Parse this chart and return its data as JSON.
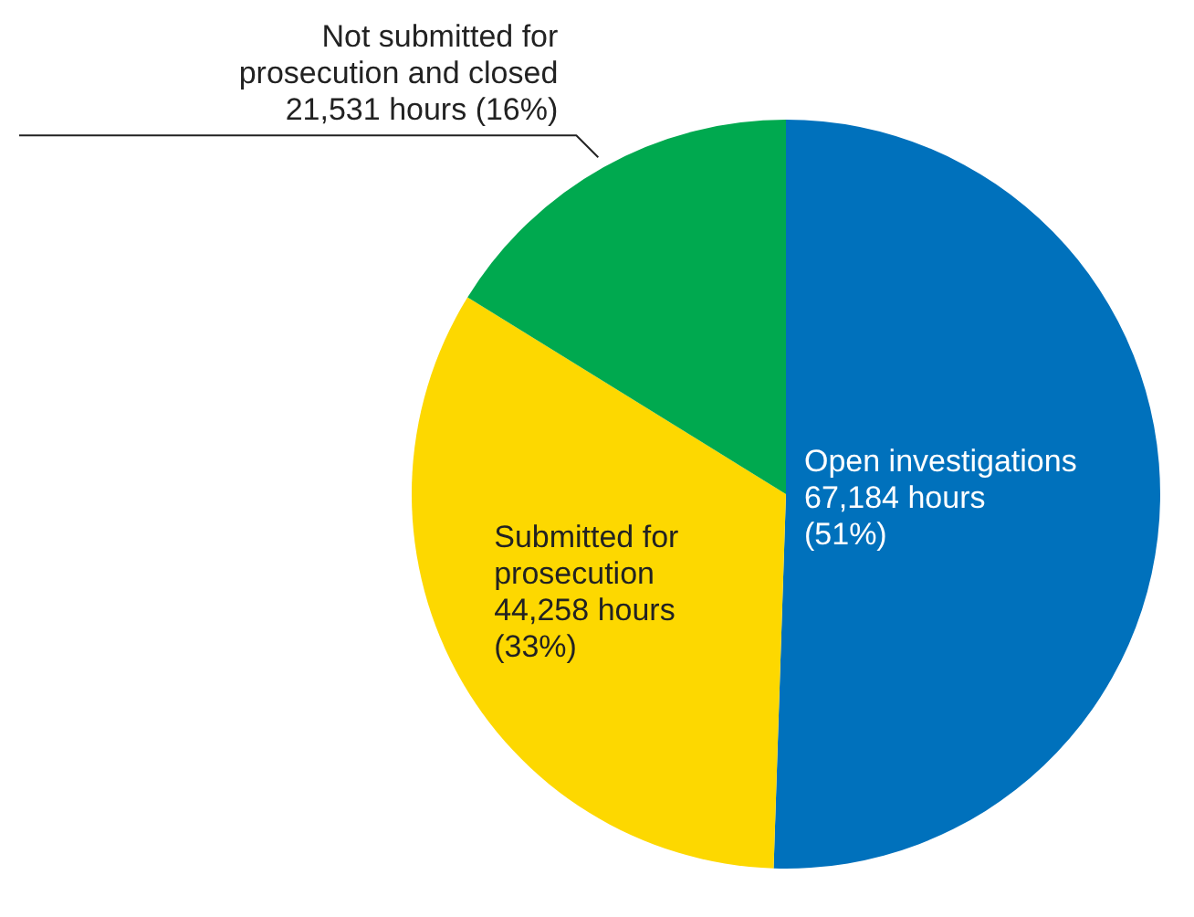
{
  "chart_data": {
    "type": "pie",
    "categories": [
      "Open investigations",
      "Submitted for prosecution",
      "Not submitted for prosecution and closed"
    ],
    "values": [
      67184,
      44258,
      21531
    ],
    "colors": [
      "#0071bc",
      "#fdd800",
      "#00a94f"
    ],
    "value_labels": [
      "67,184 hours (51%)",
      "44,258 hours (33%)",
      "21,531 hours (16%)"
    ]
  }
}
